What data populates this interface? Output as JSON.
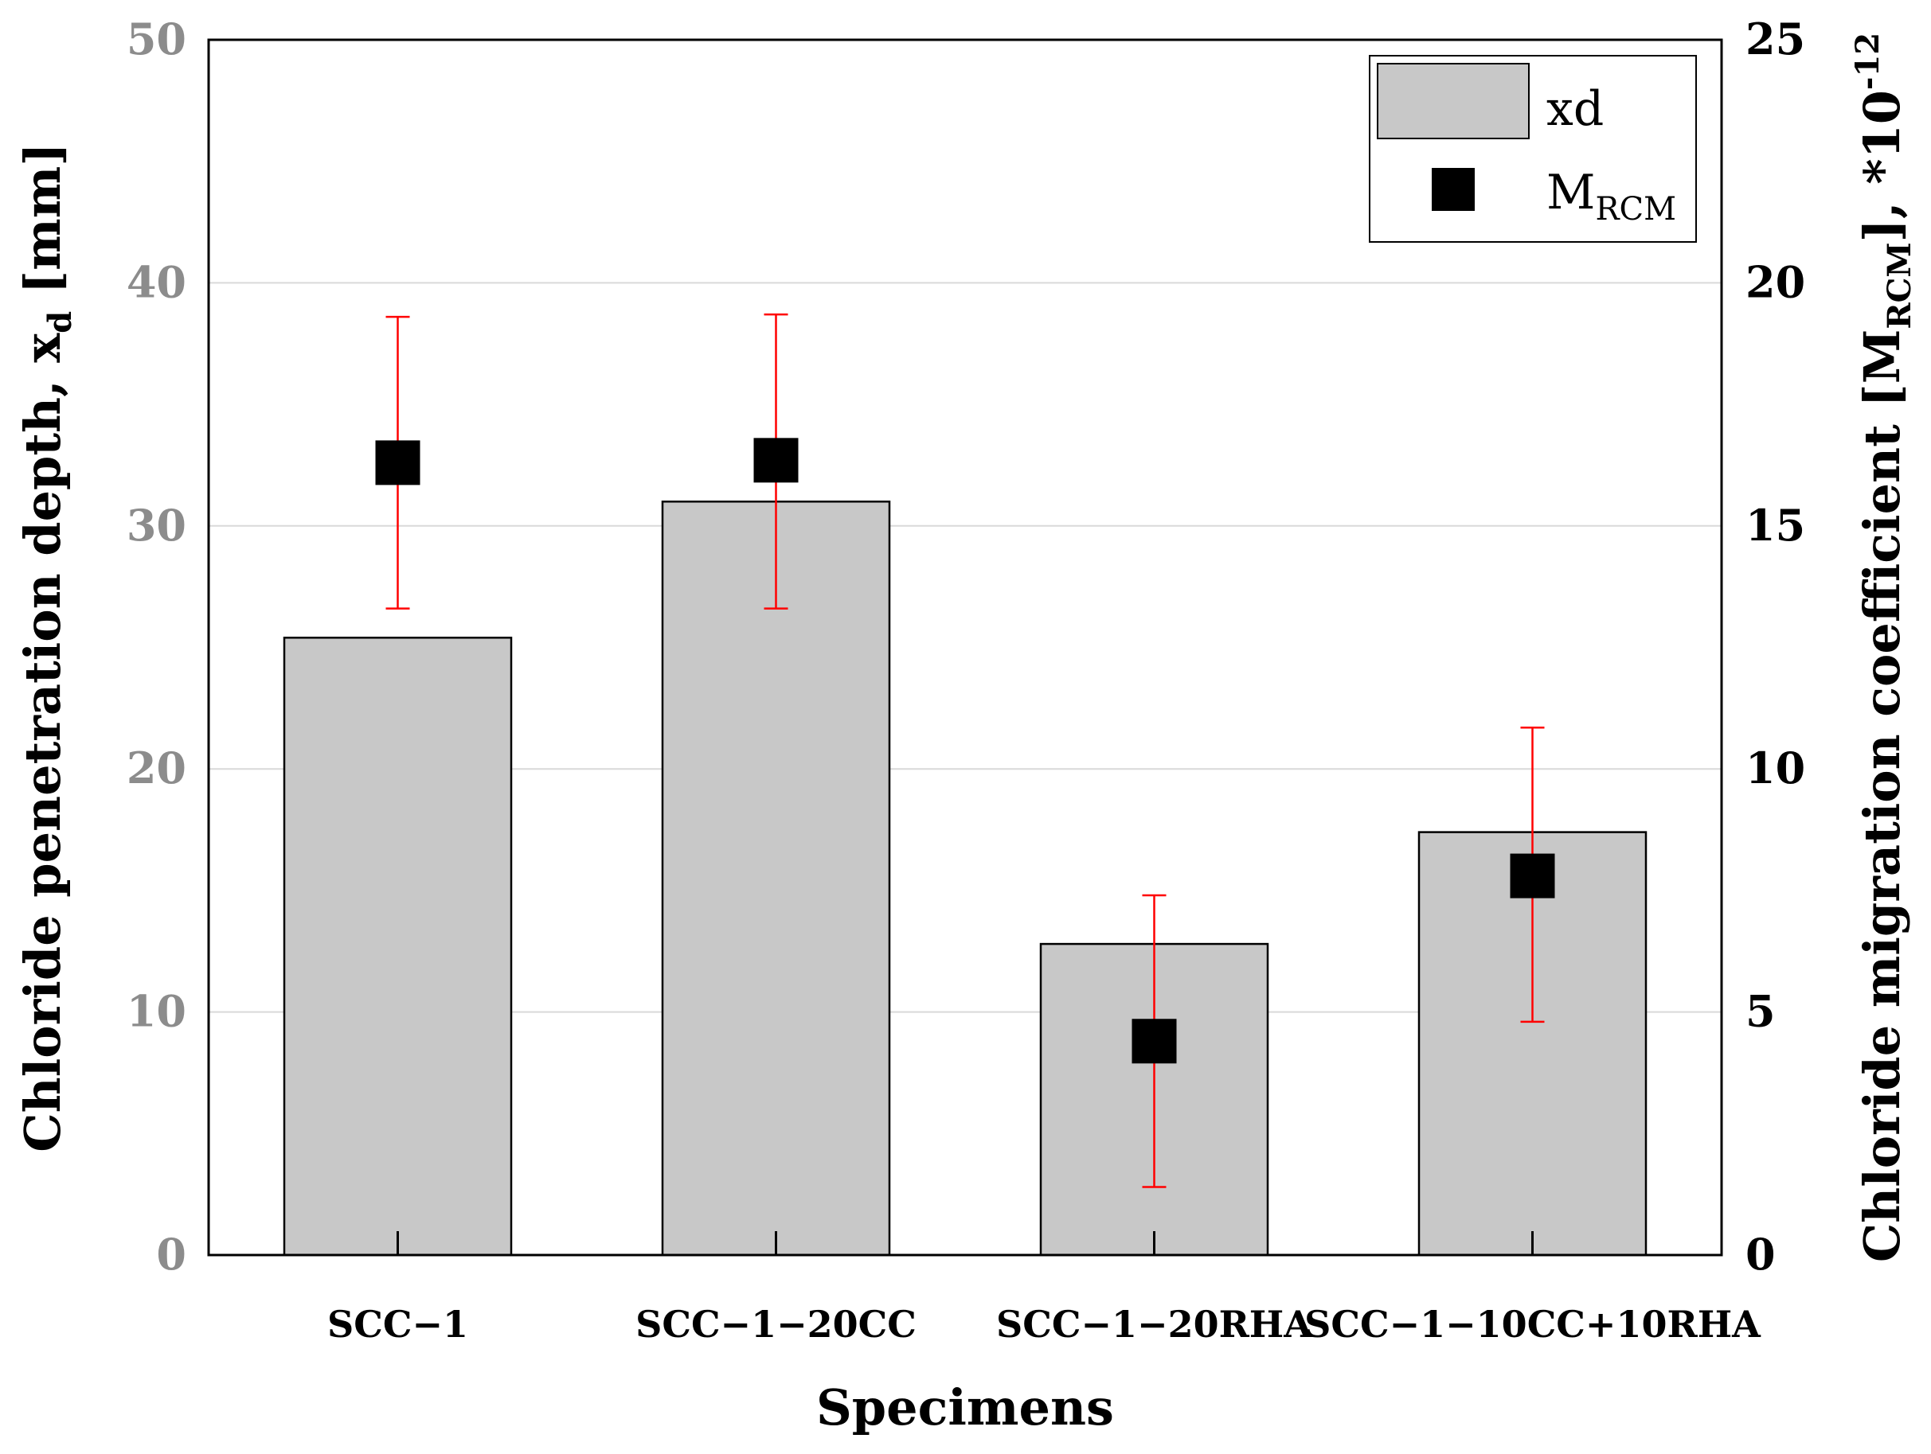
{
  "chart_data": {
    "type": "bar",
    "categories": [
      "SCC−1",
      "SCC−1−20CC",
      "SCC−1−20RHA",
      "SCC−1−10CC+10RHA"
    ],
    "series": [
      {
        "name": "xd",
        "axis": "left",
        "mark": "bar",
        "values": [
          25.4,
          31.0,
          12.8,
          17.4
        ],
        "color": "#c8c8c8"
      },
      {
        "name": "M",
        "name_sub": "RCM",
        "axis": "right",
        "mark": "square",
        "values": [
          16.3,
          16.35,
          4.4,
          7.8
        ],
        "error_low": [
          13.3,
          13.3,
          1.4,
          4.8
        ],
        "error_high": [
          19.3,
          19.35,
          7.4,
          10.85
        ],
        "color": "#000000",
        "error_color": "#ff0000"
      }
    ],
    "xlabel": "Specimens",
    "ylabel": {
      "main": "Chloride penetration depth, x",
      "sub": "d",
      "tail": " [mm]"
    },
    "y2label": {
      "main": "Chloride migration coefficient [M",
      "sub": "RCM",
      "tail": "], *10",
      "sup": "-12"
    },
    "ylim": [
      0,
      50
    ],
    "y2lim": [
      0,
      25
    ],
    "yticks": [
      "0",
      "10",
      "20",
      "30",
      "40",
      "50"
    ],
    "y2ticks": [
      "0",
      "5",
      "10",
      "15",
      "20",
      "25"
    ],
    "grid": true,
    "legend": "top-right",
    "left_tick_color": "#8c8c8c"
  }
}
